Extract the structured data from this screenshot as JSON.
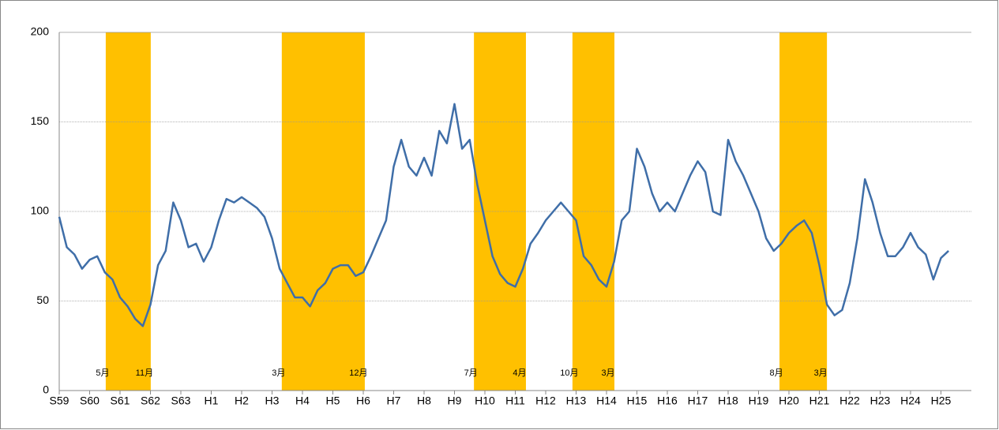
{
  "chart_data": {
    "type": "line",
    "xticks": [
      {
        "value": 0,
        "label": "S59"
      },
      {
        "value": 1,
        "label": "S60"
      },
      {
        "value": 2,
        "label": "S61"
      },
      {
        "value": 3,
        "label": "S62"
      },
      {
        "value": 4,
        "label": "S63"
      },
      {
        "value": 5,
        "label": "H1"
      },
      {
        "value": 6,
        "label": "H2"
      },
      {
        "value": 7,
        "label": "H3"
      },
      {
        "value": 8,
        "label": "H4"
      },
      {
        "value": 9,
        "label": "H5"
      },
      {
        "value": 10,
        "label": "H6"
      },
      {
        "value": 11,
        "label": "H7"
      },
      {
        "value": 12,
        "label": "H8"
      },
      {
        "value": 13,
        "label": "H9"
      },
      {
        "value": 14,
        "label": "H10"
      },
      {
        "value": 15,
        "label": "H11"
      },
      {
        "value": 16,
        "label": "H12"
      },
      {
        "value": 17,
        "label": "H13"
      },
      {
        "value": 18,
        "label": "H14"
      },
      {
        "value": 19,
        "label": "H15"
      },
      {
        "value": 20,
        "label": "H16"
      },
      {
        "value": 21,
        "label": "H17"
      },
      {
        "value": 22,
        "label": "H18"
      },
      {
        "value": 23,
        "label": "H19"
      },
      {
        "value": 24,
        "label": "H20"
      },
      {
        "value": 25,
        "label": "H21"
      },
      {
        "value": 26,
        "label": "H22"
      },
      {
        "value": 27,
        "label": "H23"
      },
      {
        "value": 28,
        "label": "H24"
      },
      {
        "value": 29,
        "label": "H25"
      }
    ],
    "xlim": [
      0,
      30
    ],
    "ylim": [
      0,
      200
    ],
    "yticks": [
      0,
      50,
      100,
      150,
      200
    ],
    "grid": true,
    "x": [
      0,
      0.25,
      0.5,
      0.75,
      1,
      1.25,
      1.5,
      1.75,
      2,
      2.25,
      2.5,
      2.75,
      3,
      3.25,
      3.5,
      3.75,
      4,
      4.25,
      4.5,
      4.75,
      5,
      5.25,
      5.5,
      5.75,
      6,
      6.25,
      6.5,
      6.75,
      7,
      7.25,
      7.5,
      7.75,
      8,
      8.25,
      8.5,
      8.75,
      9,
      9.25,
      9.5,
      9.75,
      10,
      10.25,
      10.5,
      10.75,
      11,
      11.25,
      11.5,
      11.75,
      12,
      12.25,
      12.5,
      12.75,
      13,
      13.25,
      13.5,
      13.75,
      14,
      14.25,
      14.5,
      14.75,
      15,
      15.25,
      15.5,
      15.75,
      16,
      16.25,
      16.5,
      16.75,
      17,
      17.25,
      17.5,
      17.75,
      18,
      18.25,
      18.5,
      18.75,
      19,
      19.25,
      19.5,
      19.75,
      20,
      20.25,
      20.5,
      20.75,
      21,
      21.25,
      21.5,
      21.75,
      22,
      22.25,
      22.5,
      22.75,
      23,
      23.25,
      23.5,
      23.75,
      24,
      24.25,
      24.5,
      24.75,
      25,
      25.25,
      25.5,
      25.75,
      26,
      26.25,
      26.5,
      26.75,
      27,
      27.25,
      27.5,
      27.75,
      28,
      28.25,
      28.5,
      28.75,
      29,
      29.25
    ],
    "series": [
      {
        "color": "#3f6ea8",
        "values": [
          97,
          80,
          76,
          68,
          73,
          75,
          66,
          62,
          52,
          47,
          40,
          36,
          48,
          70,
          78,
          105,
          95,
          80,
          82,
          72,
          80,
          95,
          107,
          105,
          108,
          105,
          102,
          97,
          85,
          68,
          60,
          52,
          52,
          47,
          56,
          60,
          68,
          70,
          70,
          64,
          66,
          75,
          85,
          95,
          125,
          140,
          125,
          120,
          130,
          120,
          145,
          138,
          160,
          135,
          140,
          115,
          95,
          75,
          65,
          60,
          58,
          68,
          82,
          88,
          95,
          100,
          105,
          100,
          95,
          75,
          70,
          62,
          58,
          72,
          95,
          100,
          135,
          125,
          110,
          100,
          105,
          100,
          110,
          120,
          128,
          122,
          100,
          98,
          140,
          128,
          120,
          110,
          100,
          85,
          78,
          82,
          88,
          92,
          95,
          88,
          70,
          48,
          42,
          45,
          60,
          85,
          118,
          105,
          88,
          75,
          75,
          80,
          88,
          80,
          76,
          62,
          74,
          78
        ]
      }
    ],
    "bands": [
      {
        "start": 1.53,
        "end": 3.01,
        "start_label": "5月",
        "end_label": "11月"
      },
      {
        "start": 7.32,
        "end": 10.05,
        "start_label": "3月",
        "end_label": "12月"
      },
      {
        "start": 13.64,
        "end": 15.35,
        "start_label": "7月",
        "end_label": "4月"
      },
      {
        "start": 16.88,
        "end": 18.26,
        "start_label": "10月",
        "end_label": "3月"
      },
      {
        "start": 23.69,
        "end": 25.25,
        "start_label": "8月",
        "end_label": "3月"
      }
    ],
    "band_color": "#ffc000"
  }
}
